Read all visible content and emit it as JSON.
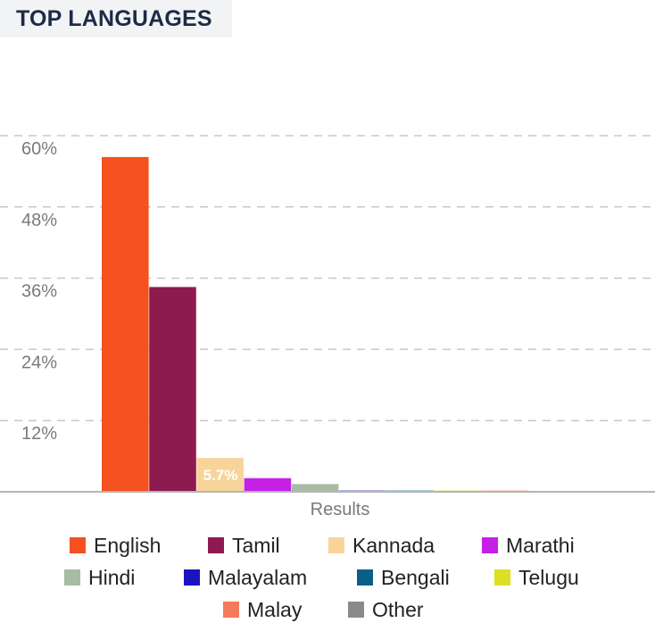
{
  "title": "TOP LANGUAGES",
  "chart_data": {
    "type": "bar",
    "title": "TOP LANGUAGES",
    "categories": [
      "Results"
    ],
    "xlabel": "Results",
    "ylabel": "",
    "ylim": [
      0,
      60
    ],
    "yticks": [
      "12%",
      "24%",
      "36%",
      "48%",
      "60%"
    ],
    "ytick_values": [
      12,
      24,
      36,
      48,
      60
    ],
    "grid": true,
    "legend_placement": "bottom",
    "series": [
      {
        "name": "English",
        "values": [
          56.4
        ],
        "color": "#f4511e"
      },
      {
        "name": "Tamil",
        "values": [
          34.5
        ],
        "color": "#8e1b50"
      },
      {
        "name": "Kannada",
        "values": [
          5.7
        ],
        "color": "#f9d49a",
        "data_label": "5.7%"
      },
      {
        "name": "Marathi",
        "values": [
          2.3
        ],
        "color": "#c520e6"
      },
      {
        "name": "Hindi",
        "values": [
          1.3
        ],
        "color": "#a8bba4"
      },
      {
        "name": "Malayalam",
        "values": [
          0.2
        ],
        "color": "#1a14c0"
      },
      {
        "name": "Bengali",
        "values": [
          0.2
        ],
        "color": "#0b5f86"
      },
      {
        "name": "Telugu",
        "values": [
          0.2
        ],
        "color": "#dede24"
      },
      {
        "name": "Malay",
        "values": [
          0.2
        ],
        "color": "#f47a5a"
      },
      {
        "name": "Other",
        "values": [
          0.15
        ],
        "color": "#8a8a8a"
      }
    ]
  }
}
